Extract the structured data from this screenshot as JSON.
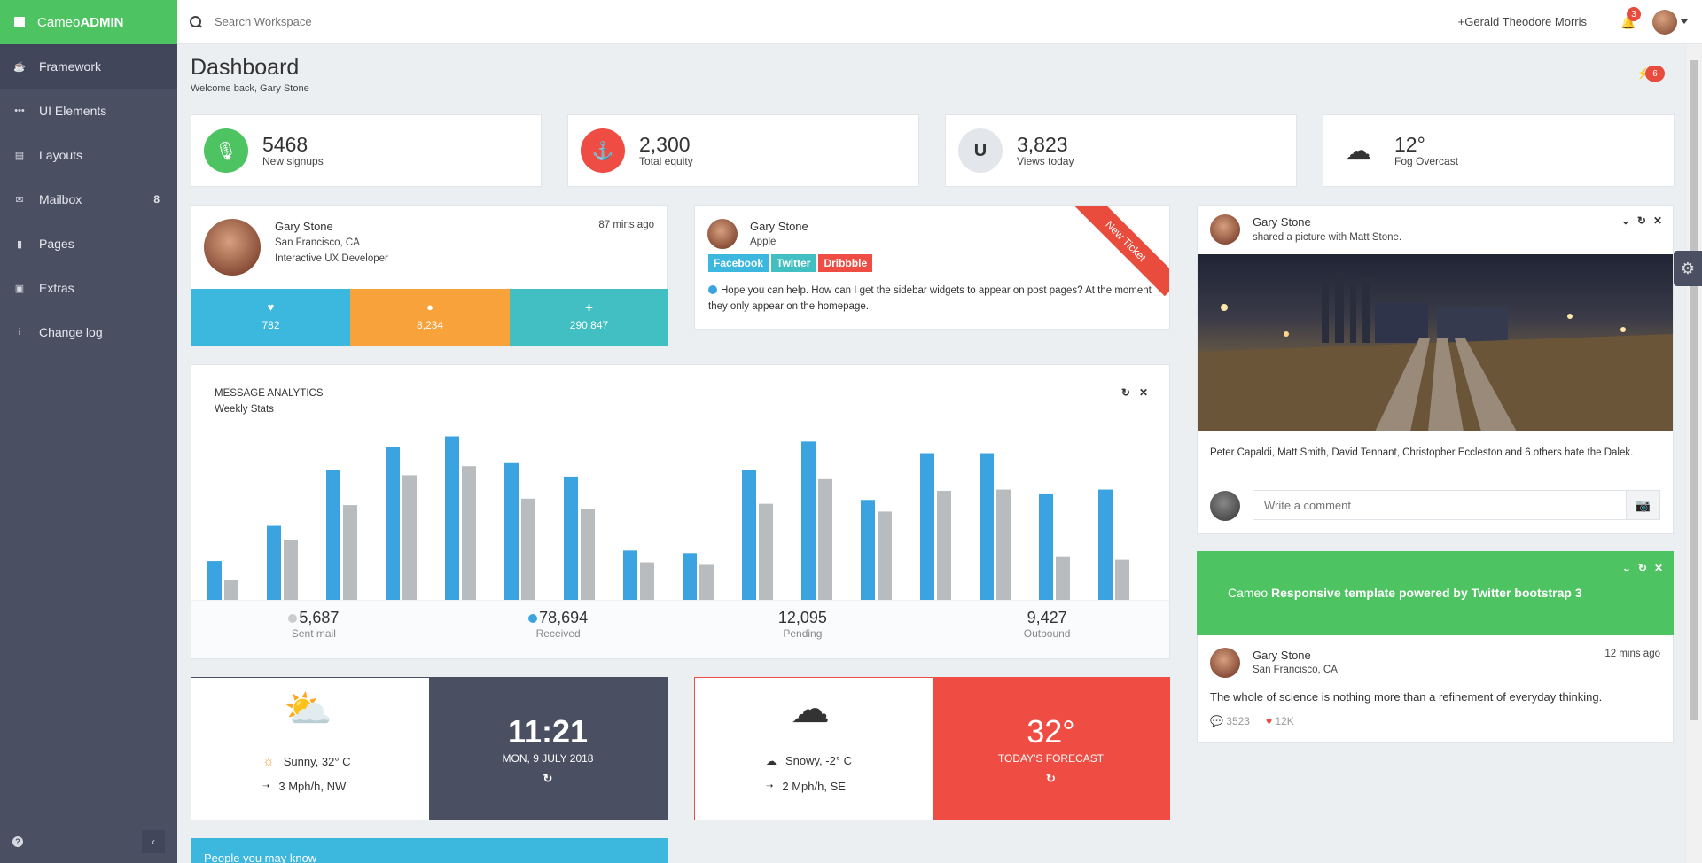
{
  "brand": {
    "prefix": "Cameo",
    "bold": "ADMIN"
  },
  "sidebar": {
    "items": [
      {
        "label": "Framework",
        "icon": "coffee-icon"
      },
      {
        "label": "UI Elements",
        "icon": "ellipsis-icon"
      },
      {
        "label": "Layouts",
        "icon": "layout-icon"
      },
      {
        "label": "Mailbox",
        "icon": "envelope-icon",
        "badge": "8"
      },
      {
        "label": "Pages",
        "icon": "file-icon"
      },
      {
        "label": "Extras",
        "icon": "gift-icon"
      },
      {
        "label": "Change log",
        "icon": "info-icon"
      }
    ]
  },
  "topbar": {
    "search_placeholder": "Search Workspace",
    "user": "+Gerald Theodore Morris",
    "notifications": "3"
  },
  "header": {
    "title": "Dashboard",
    "subtitle": "Welcome back, Gary Stone",
    "flash_count": "6"
  },
  "stats": [
    {
      "value": "5468",
      "label": "New signups",
      "icon": "microphone-icon",
      "color": "#4ec362"
    },
    {
      "value": "2,300",
      "label": "Total equity",
      "icon": "anchor-icon",
      "color": "#ef4c43"
    },
    {
      "value": "3,823",
      "label": "Views today",
      "icon": "magnet-icon",
      "color": "#e3e6ea"
    },
    {
      "value": "12°",
      "label": "Fog Overcast",
      "icon": "fog-icon"
    }
  ],
  "profile": {
    "name": "Gary Stone",
    "location": "San Francisco, CA",
    "role": "Interactive UX Developer",
    "time": "87 mins ago",
    "counters": [
      {
        "value": "782",
        "icon": "heart-icon",
        "color": "#3cb8df"
      },
      {
        "value": "8,234",
        "icon": "user-icon",
        "color": "#f7a23a"
      },
      {
        "value": "290,847",
        "icon": "plus-icon",
        "color": "#41bfc2"
      }
    ]
  },
  "ticket": {
    "name": "Gary Stone",
    "company": "Apple",
    "ribbon": "New Ticket",
    "tags": [
      {
        "label": "Facebook",
        "color": "#3cb8df"
      },
      {
        "label": "Twitter",
        "color": "#41bfc2"
      },
      {
        "label": "Dribbble",
        "color": "#ef4c43"
      }
    ],
    "message": "Hope you can help. How can I get the sidebar widgets to appear on post pages? At the moment they only appear on the homepage."
  },
  "analytics": {
    "title": "MESSAGE ANALYTICS",
    "subtitle": "Weekly Stats",
    "summary": [
      {
        "value": "5,687",
        "label": "Sent mail",
        "dot": "#cccccc"
      },
      {
        "value": "78,694",
        "label": "Received",
        "dot": "#3ba3e0"
      },
      {
        "value": "12,095",
        "label": "Pending"
      },
      {
        "value": "9,427",
        "label": "Outbound"
      }
    ]
  },
  "chart_data": {
    "type": "bar",
    "title": "MESSAGE ANALYTICS",
    "ylim": [
      0,
      140
    ],
    "series": [
      {
        "color": "#3ba3e0",
        "values": [
          30,
          57,
          100,
          118,
          126,
          106,
          95,
          38,
          36,
          100,
          122,
          77,
          113,
          113,
          82,
          85
        ]
      },
      {
        "color": "#b9bcbf",
        "values": [
          15,
          46,
          73,
          96,
          103,
          78,
          70,
          29,
          27,
          74,
          93,
          68,
          84,
          85,
          33,
          31
        ]
      }
    ]
  },
  "social": {
    "name": "Gary Stone",
    "action": "shared a picture with Matt Stone.",
    "caption": "Peter Capaldi, Matt Smith, David Tennant, Christopher Eccleston and 6 others hate the Dalek.",
    "comment_placeholder": "Write a comment"
  },
  "promo": {
    "prefix": "Cameo ",
    "bold": "Responsive template powered by Twitter bootstrap 3",
    "color": "#4ec362"
  },
  "quote": {
    "name": "Gary Stone",
    "location": "San Francisco, CA",
    "time": "12 mins ago",
    "text": "The whole of science is nothing more than a refinement of everyday thinking.",
    "comments": "3523",
    "likes": "12K"
  },
  "weather1": {
    "condition": "Sunny, 32° C",
    "wind": "3 Mph/h, NW",
    "time": "11:21",
    "date": "MON, 9 JULY 2018",
    "panel_color": "#4b4f62"
  },
  "weather2": {
    "condition": "Snowy, -2° C",
    "wind": "2 Mph/h, SE",
    "temp": "32°",
    "label": "TODAY'S FORECAST",
    "panel_color": "#ef4c43"
  },
  "people": {
    "title": "People you may know",
    "color": "#3cb8df"
  }
}
